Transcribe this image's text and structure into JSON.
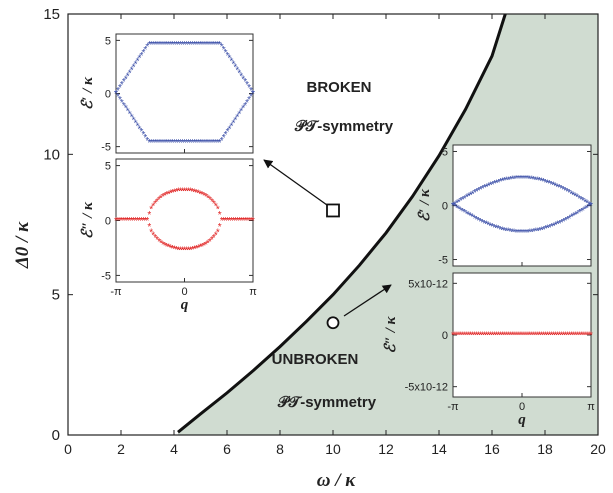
{
  "chart_data": [
    {
      "type": "area",
      "xlabel": "ω / κ",
      "ylabel": "Δ0 / κ",
      "xlim": [
        0,
        20
      ],
      "ylim": [
        0,
        15
      ],
      "x_ticks": [
        "0",
        "2",
        "4",
        "6",
        "8",
        "10",
        "12",
        "14",
        "16",
        "18",
        "20"
      ],
      "y_ticks": [
        "0",
        "5",
        "10",
        "15"
      ],
      "grid": false,
      "series": [
        {
          "x": [
            4.15,
            5,
            6,
            7,
            8,
            9,
            10,
            11,
            12,
            13,
            14,
            15,
            16,
            16.5
          ],
          "values": [
            0.1,
            0.75,
            1.5,
            2.3,
            3.15,
            4.05,
            5.0,
            6.05,
            7.2,
            8.5,
            9.95,
            11.6,
            13.5,
            15.0
          ]
        }
      ],
      "regions": [
        {
          "label": "BROKEN",
          "sublabel": "𝒫𝒯-symmetry"
        },
        {
          "label": "UNBROKEN",
          "sublabel": "𝒫𝒯-symmetry"
        }
      ],
      "markers": [
        {
          "shape": "square",
          "x": 10,
          "y": 8
        },
        {
          "shape": "circle",
          "x": 10,
          "y": 4
        }
      ],
      "colors": {
        "unbroken_fill": "#d0dcd1",
        "boundary": "#111111"
      }
    },
    {
      "type": "scatter",
      "inset": "broken-top",
      "ylabel": "ℰ′ / κ",
      "y_ticks": [
        "5",
        "0",
        "-5"
      ],
      "ylim": [
        -5.6,
        5.6
      ],
      "series": [
        {
          "relation": "ℰ′ = Re(±√(4cos²q − (ω/κ)²/16)), 0.5 sin-broken",
          "color": "#3b4fa8"
        }
      ]
    },
    {
      "type": "scatter",
      "inset": "broken-bottom",
      "xlabel": "q",
      "ylabel": "ℰ″ / κ",
      "x_ticks": [
        "-π",
        "0",
        "π"
      ],
      "y_ticks": [
        "5",
        "0",
        "-5"
      ],
      "ylim": [
        -5.6,
        5.6
      ],
      "series": [
        {
          "color": "#e02020"
        }
      ]
    },
    {
      "type": "scatter",
      "inset": "unbroken-top",
      "ylabel": "ℰ′ / κ",
      "y_ticks": [
        "5",
        "0",
        "-5"
      ],
      "ylim": [
        -5.6,
        5.6
      ],
      "series": [
        {
          "amplitude": 2.5,
          "color": "#3b4fa8"
        }
      ]
    },
    {
      "type": "scatter",
      "inset": "unbroken-bottom",
      "xlabel": "q",
      "ylabel": "ℰ″ / κ",
      "x_ticks": [
        "-π",
        "0",
        "π"
      ],
      "y_ticks": [
        "5x10-12",
        "0",
        "-5x10-12"
      ],
      "ylim": [
        -6,
        6
      ],
      "series": [
        {
          "value": 0,
          "color": "#e02020"
        }
      ]
    }
  ]
}
